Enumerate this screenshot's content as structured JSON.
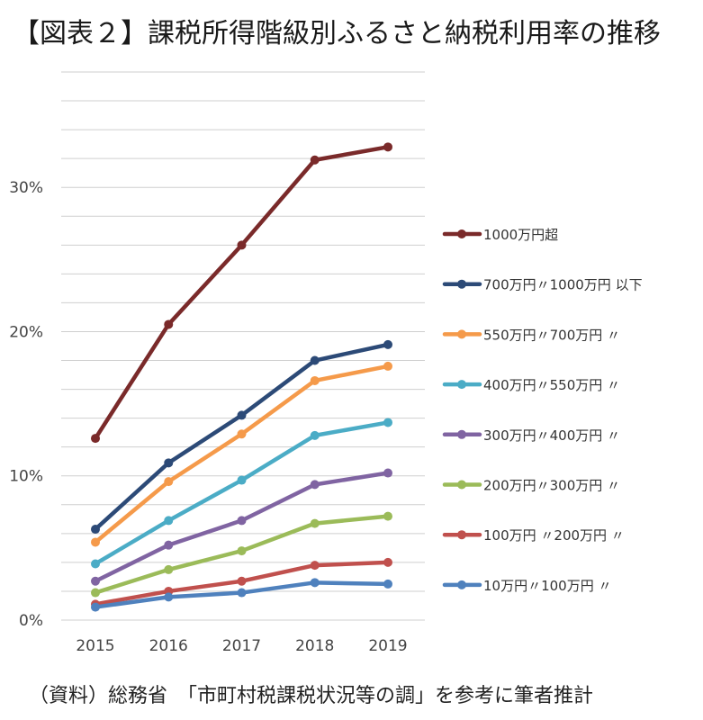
{
  "chart_data": {
    "type": "line",
    "title": "【図表２】課税所得階級別ふるさと納税利用率の推移",
    "source": "（資料）総務省　「市町村税課税状況等の調」を参考に筆者推計",
    "categories": [
      "2015",
      "2016",
      "2017",
      "2018",
      "2019"
    ],
    "ylim": [
      0,
      0.38
    ],
    "yticks": [
      {
        "value": 0,
        "label": "0%"
      },
      {
        "value": 0.1,
        "label": "10%"
      },
      {
        "value": 0.2,
        "label": "20%"
      },
      {
        "value": 0.3,
        "label": "30%"
      }
    ],
    "grid": true,
    "legend_position": "right",
    "series": [
      {
        "name": "1000万円超",
        "color": "#7a2a2a",
        "values": [
          0.126,
          0.205,
          0.26,
          0.319,
          0.328
        ]
      },
      {
        "name": "700万円〃1000万円 以下",
        "color": "#2c4a77",
        "values": [
          0.063,
          0.109,
          0.142,
          0.18,
          0.191
        ]
      },
      {
        "name": "550万円〃700万円 〃",
        "color": "#f59a4a",
        "values": [
          0.054,
          0.096,
          0.129,
          0.166,
          0.176
        ]
      },
      {
        "name": "400万円〃550万円 〃",
        "color": "#4bacc6",
        "values": [
          0.039,
          0.069,
          0.097,
          0.128,
          0.137
        ]
      },
      {
        "name": "300万円〃400万円 〃",
        "color": "#8064a2",
        "values": [
          0.027,
          0.052,
          0.069,
          0.094,
          0.102
        ]
      },
      {
        "name": "200万円〃300万円 〃",
        "color": "#9bbb59",
        "values": [
          0.019,
          0.035,
          0.048,
          0.067,
          0.072
        ]
      },
      {
        "name": "100万円 〃200万円 〃",
        "color": "#c0504d",
        "values": [
          0.011,
          0.02,
          0.027,
          0.038,
          0.04
        ]
      },
      {
        "name": " 10万円〃100万円 〃",
        "color": "#4f81bd",
        "values": [
          0.009,
          0.016,
          0.019,
          0.026,
          0.025
        ]
      }
    ]
  }
}
